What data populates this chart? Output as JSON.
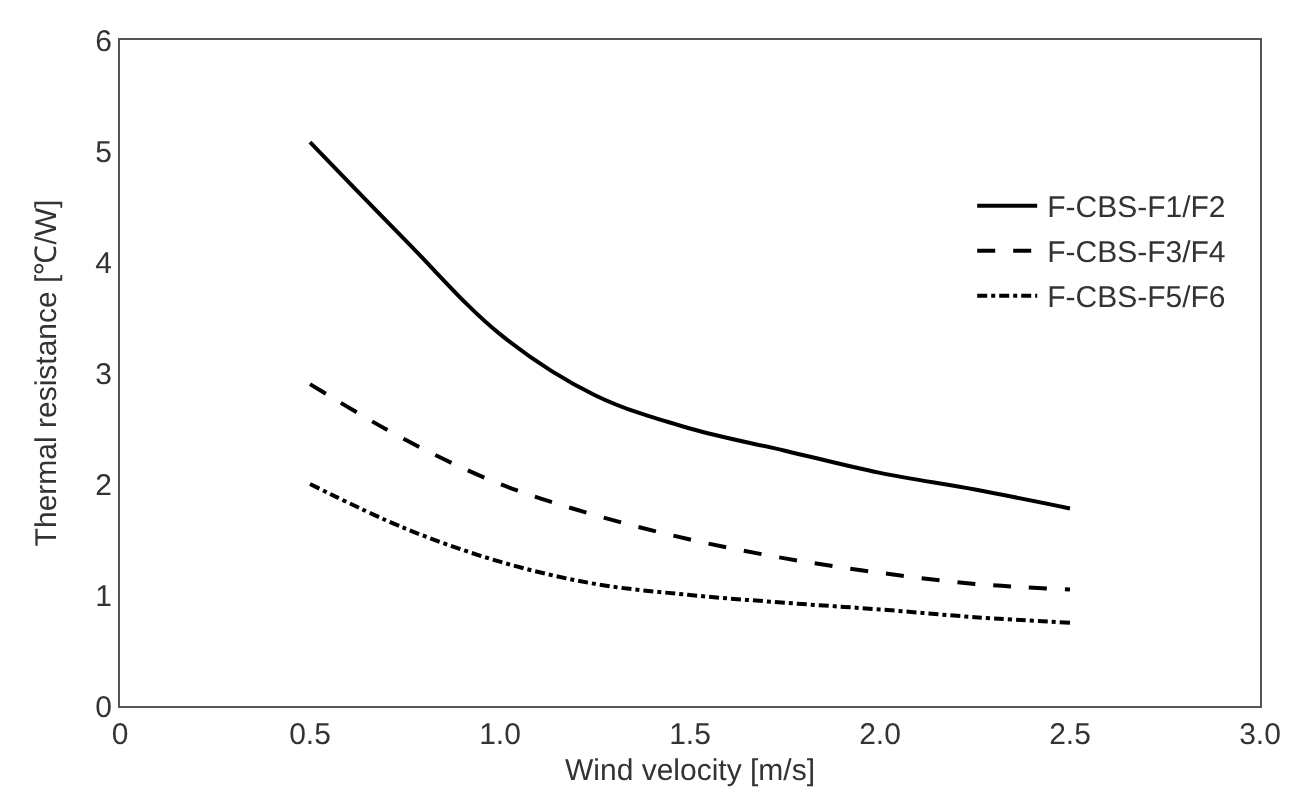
{
  "chart_data": {
    "type": "line",
    "xlabel": "Wind velocity [m/s]",
    "ylabel": "Thermal resistance [℃/W]",
    "x": [
      0.5,
      0.75,
      1.0,
      1.25,
      1.5,
      1.75,
      2.0,
      2.25,
      2.5
    ],
    "series": [
      {
        "name": "F-CBS-F1/F2",
        "color": "#000000",
        "line_style": "solid",
        "values": [
          5.08,
          4.2,
          3.35,
          2.8,
          2.5,
          2.3,
          2.1,
          1.95,
          1.78
        ]
      },
      {
        "name": "F-CBS-F3/F4",
        "color": "#000000",
        "line_style": "dashed",
        "values": [
          2.9,
          2.4,
          2.0,
          1.72,
          1.5,
          1.33,
          1.2,
          1.1,
          1.05
        ]
      },
      {
        "name": "F-CBS-F5/F6",
        "color": "#000000",
        "line_style": "dashdot",
        "values": [
          2.0,
          1.6,
          1.3,
          1.1,
          1.0,
          0.93,
          0.87,
          0.8,
          0.75
        ]
      }
    ],
    "xlim": [
      0,
      3.0
    ],
    "ylim": [
      0,
      6
    ],
    "xticks": [
      0,
      {
        "value": 0.5,
        "label": "0.5"
      },
      {
        "value": 1.0,
        "label": "1.0"
      },
      {
        "value": 1.5,
        "label": "1.5"
      },
      {
        "value": 2.0,
        "label": "2.0"
      },
      {
        "value": 2.5,
        "label": "2.5"
      },
      {
        "value": 3.0,
        "label": "3.0"
      }
    ],
    "yticks": [
      0,
      1,
      2,
      3,
      4,
      5,
      6
    ],
    "legend": "top right",
    "marker": "none"
  }
}
